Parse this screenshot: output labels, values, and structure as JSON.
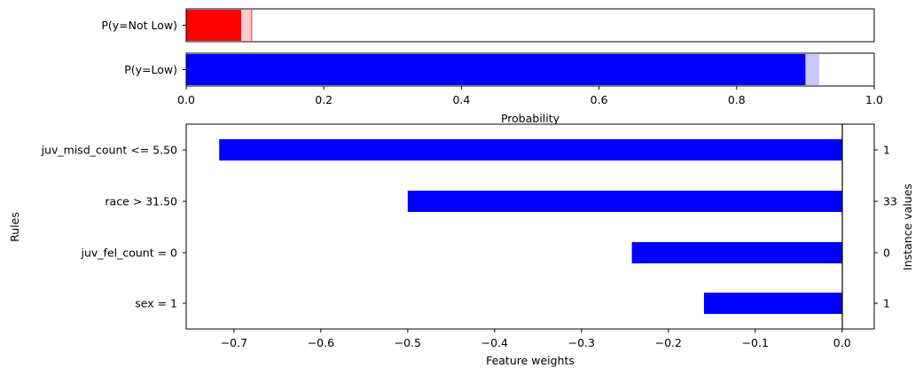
{
  "colors": {
    "not_low": "#ff0000",
    "not_low_uncertainty": "#ffcccc",
    "low": "#0000ff",
    "low_uncertainty": "#c8c8ff",
    "weight_bar": "#0000ff"
  },
  "chart_data": [
    {
      "type": "bar",
      "orientation": "horizontal",
      "categories": [
        "P(y=Not Low)",
        "P(y=Low)"
      ],
      "values": [
        0.08,
        0.9
      ],
      "uncertainty_upper": [
        0.095,
        0.92
      ],
      "xlabel": "Probability",
      "xlim": [
        0.0,
        1.0
      ],
      "xticks": [
        "0.0",
        "0.2",
        "0.4",
        "0.6",
        "0.8",
        "1.0"
      ],
      "grid": false
    },
    {
      "type": "bar",
      "orientation": "horizontal",
      "categories": [
        "juv_misd_count <= 5.50",
        "race > 31.50",
        "juv_fel_count = 0",
        "sex = 1"
      ],
      "values": [
        -0.717,
        -0.5,
        -0.242,
        -0.159
      ],
      "instance_values": [
        "1",
        "33",
        "0",
        "1"
      ],
      "xlabel": "Feature weights",
      "ylabel": "Rules",
      "ylabel_right": "Instance values",
      "xlim": [
        -0.755,
        0.037
      ],
      "xticks": [
        -0.7,
        -0.6,
        -0.5,
        -0.4,
        -0.3,
        -0.2,
        -0.1,
        0.0
      ],
      "xtick_labels": [
        "−0.7",
        "−0.6",
        "−0.5",
        "−0.4",
        "−0.3",
        "−0.2",
        "−0.1",
        "0.0"
      ],
      "grid": false
    }
  ]
}
